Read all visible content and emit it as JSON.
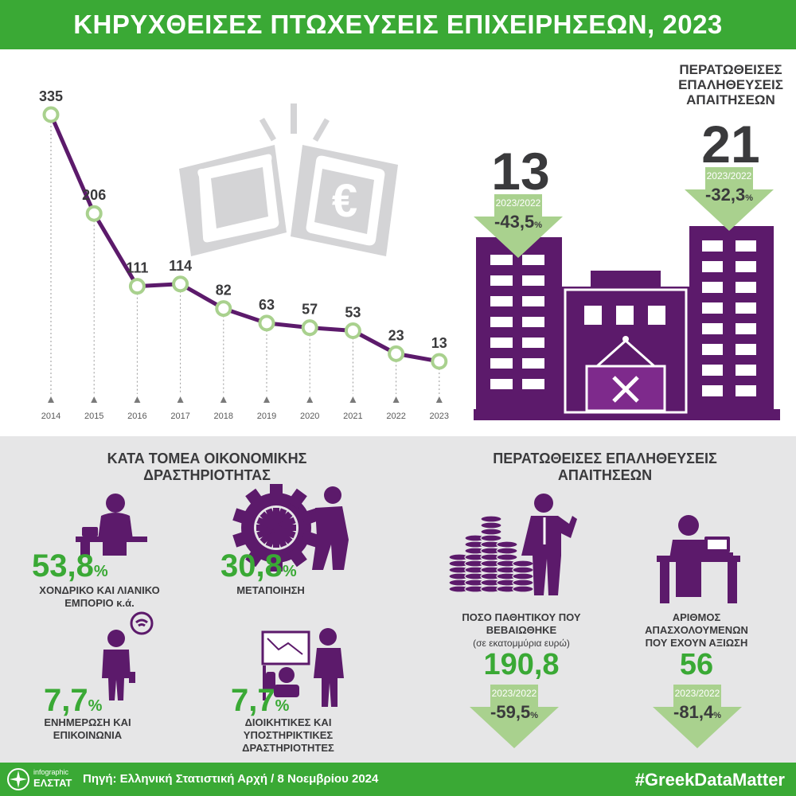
{
  "title": "ΚΗΡΥΧΘΕΙΣΕΣ ΠΤΩΧΕΥΣΕΙΣ ΕΠΙΧΕΙΡΗΣΕΩΝ, 2023",
  "colors": {
    "green": "#3aa935",
    "light_green": "#a9d18e",
    "purple": "#5c1a6b",
    "gray_icon": "#d4d4d6",
    "dark_text": "#3a3a3c"
  },
  "chart_data": {
    "type": "line",
    "x": [
      "2014",
      "2015",
      "2016",
      "2017",
      "2018",
      "2019",
      "2020",
      "2021",
      "2022",
      "2023"
    ],
    "values": [
      335,
      206,
      111,
      114,
      82,
      63,
      57,
      53,
      23,
      13
    ],
    "title": "",
    "xlabel": "",
    "ylabel": "",
    "ylim": [
      0,
      335
    ],
    "grid": false
  },
  "buildings": {
    "left": {
      "value": "13",
      "period": "2023/2022",
      "change": "-43,5",
      "unit": "%"
    },
    "right": {
      "title": "ΠΕΡΑΤΩΘΕΙΣΕΣ ΕΠΑΛΗΘΕΥΣΕΙΣ ΑΠΑΙΤΗΣΕΩΝ",
      "value": "21",
      "period": "2023/2022",
      "change": "-32,3",
      "unit": "%"
    }
  },
  "sectors": {
    "title": "ΚΑΤΑ ΤΟΜΕΑ ΟΙΚΟΝΟΜΙΚΗΣ ΔΡΑΣΤΗΡΙΟΤΗΤΑΣ",
    "items": [
      {
        "value": "53,8",
        "unit": "%",
        "label": "ΧΟΝΔΡΙΚΟ ΚΑΙ ΛΙΑΝΙΚΟ ΕΜΠΟΡΙΟ κ.ά.",
        "icon": "desk-phone-person-icon"
      },
      {
        "value": "30,8",
        "unit": "%",
        "label": "ΜΕΤΑΠΟΙΗΣΗ",
        "icon": "gear-worker-icon"
      },
      {
        "value": "7,7",
        "unit": "%",
        "label": "ΕΝΗΜΕΡΩΣΗ ΚΑΙ ΕΠΙΚΟΙΝΩΝΙΑ",
        "icon": "person-wifi-icon"
      },
      {
        "value": "7,7",
        "unit": "%",
        "label": "ΔΙΟΙΚΗΤΙΚΕΣ ΚΑΙ ΥΠΟΣΤΗΡΙΚΤΙΚΕΣ ΔΡΑΣΤΗΡΙΟΤΗΤΕΣ",
        "icon": "office-presentation-icon"
      }
    ]
  },
  "claims": {
    "title": "ΠΕΡΑΤΩΘΕΙΣΕΣ ΕΠΑΛΗΘΕΥΣΕΙΣ ΑΠΑΙΤΗΣΕΩΝ",
    "liabilities": {
      "label": "ΠΟΣΟ ΠΑΘΗΤΙΚΟΥ ΠΟΥ ΒΕΒΑΙΩΘΗΚΕ",
      "note": "(σε εκατομμύρια ευρώ)",
      "value": "190,8",
      "period": "2023/2022",
      "change": "-59,5",
      "unit": "%"
    },
    "employees": {
      "label": "ΑΡΙΘΜΟΣ ΑΠΑΣΧΟΛΟΥΜΕΝΩΝ ΠΟΥ ΕΧΟΥΝ ΑΞΙΩΣΗ",
      "value": "56",
      "period": "2023/2022",
      "change": "-81,4",
      "unit": "%"
    }
  },
  "footer": {
    "logo_top": "infographic",
    "logo_bottom": "ΕΛΣΤΑΤ",
    "source": "Πηγή: Ελληνική Στατιστική Αρχή",
    "date": "/ 8 Νοεμβρίου 2024",
    "hashtag": "#GreekDataMatter"
  }
}
